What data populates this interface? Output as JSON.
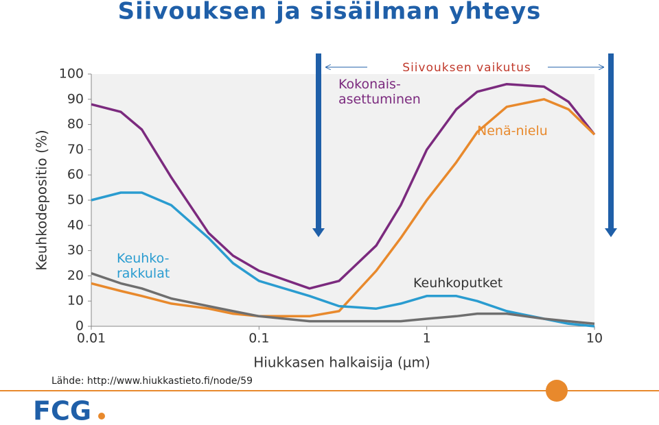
{
  "title": "Siivouksen ja sisäilman yhteys",
  "source": "Lähde: http://www.hiukkastieto.fi/node/59",
  "logo": "FCG",
  "chart_data": {
    "type": "line",
    "annotation": "Siivouksen vaikutus",
    "x_label": "Hiukkasen halkaisija (µm)",
    "y_label": "Keuhkodepositio (%)",
    "x_scale": "log",
    "x": [
      0.01,
      0.015,
      0.02,
      0.03,
      0.05,
      0.07,
      0.1,
      0.2,
      0.3,
      0.5,
      0.7,
      1,
      1.5,
      2,
      3,
      5,
      7,
      10
    ],
    "series": [
      {
        "name": "Kokonais-asettuminen",
        "color": "#7b2a7e",
        "values": [
          88,
          85,
          78,
          59,
          37,
          28,
          22,
          15,
          18,
          32,
          48,
          70,
          86,
          93,
          96,
          95,
          89,
          76
        ]
      },
      {
        "name": "Nenä-nielu",
        "color": "#e8892c",
        "values": [
          17,
          14,
          12,
          9,
          7,
          5,
          4,
          4,
          6,
          22,
          35,
          50,
          65,
          77,
          87,
          90,
          86,
          76
        ]
      },
      {
        "name": "Keuhko-rakkulat",
        "color": "#2a9cd0",
        "values": [
          50,
          53,
          53,
          48,
          35,
          25,
          18,
          12,
          8,
          7,
          9,
          12,
          12,
          10,
          6,
          3,
          1,
          0
        ]
      },
      {
        "name": "Keuhkoputket",
        "color": "#6e6e6e",
        "values": [
          21,
          17,
          15,
          11,
          8,
          6,
          4,
          2,
          2,
          2,
          2,
          3,
          4,
          5,
          5,
          3,
          2,
          1
        ]
      }
    ],
    "xlim": [
      0.01,
      10
    ],
    "xticks": [
      0.01,
      0.1,
      1,
      10
    ],
    "ylim": [
      0,
      100
    ],
    "yticks": [
      0,
      10,
      20,
      30,
      40,
      50,
      60,
      70,
      80,
      90,
      100
    ]
  }
}
